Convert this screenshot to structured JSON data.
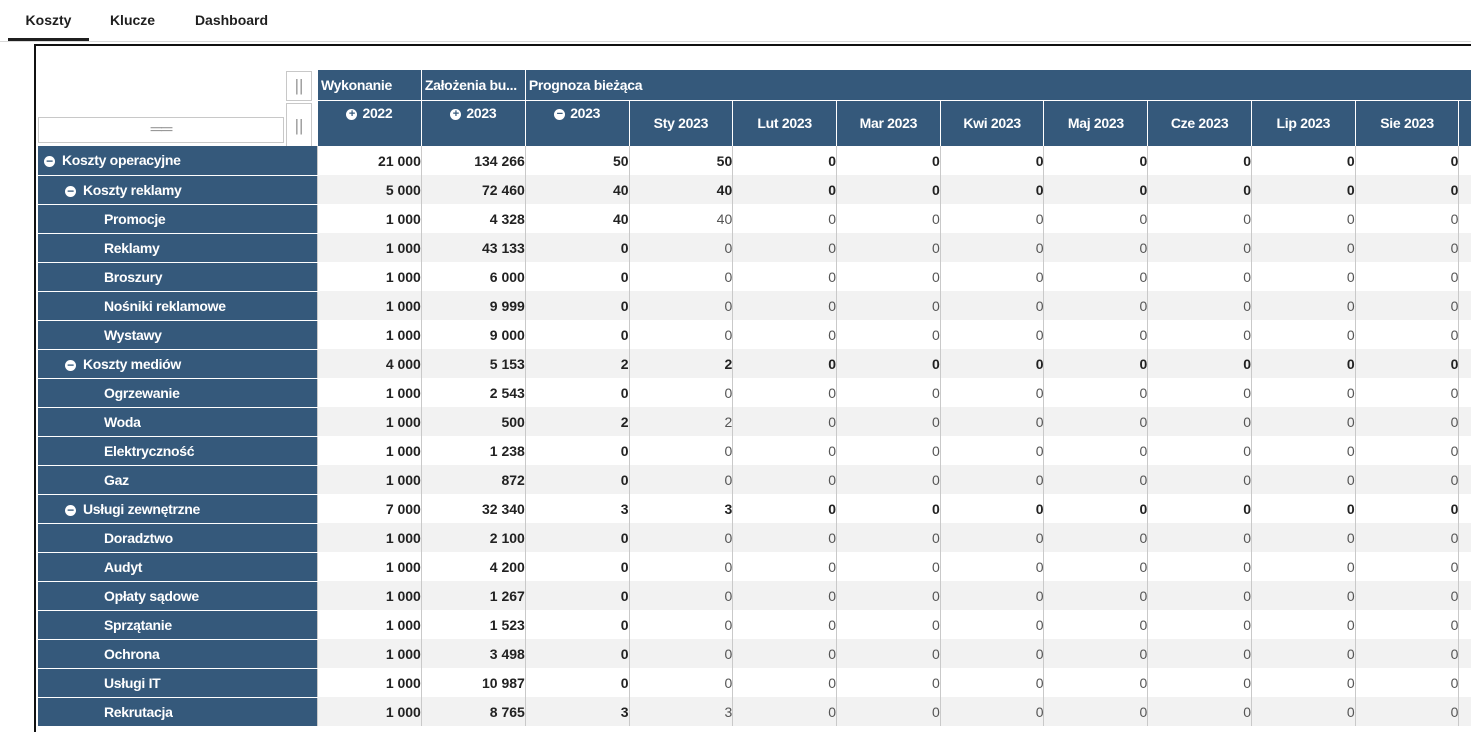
{
  "tabs": [
    {
      "label": "Koszty",
      "active": true
    },
    {
      "label": "Klucze",
      "active": false
    },
    {
      "label": "Dashboard",
      "active": false
    }
  ],
  "grip_glyph": "||",
  "column_groups": [
    "Wykonanie",
    "Założenia bu...",
    "Prognoza bieżąca"
  ],
  "year_headers": [
    {
      "label": "2022",
      "icon": "expand-icon"
    },
    {
      "label": "2023",
      "icon": "expand-icon"
    },
    {
      "label": "2023",
      "icon": "collapse-icon"
    }
  ],
  "month_headers": [
    "Sty 2023",
    "Lut 2023",
    "Mar 2023",
    "Kwi 2023",
    "Maj 2023",
    "Cze 2023",
    "Lip 2023",
    "Sie 2023"
  ],
  "rows": [
    {
      "label": "Koszty operacyjne",
      "level": 0,
      "toggle": true,
      "values": [
        "21 000",
        "134 266",
        "50",
        "50",
        "0",
        "0",
        "0",
        "0",
        "0",
        "0",
        "0"
      ]
    },
    {
      "label": "Koszty reklamy",
      "level": 1,
      "toggle": true,
      "values": [
        "5 000",
        "72 460",
        "40",
        "40",
        "0",
        "0",
        "0",
        "0",
        "0",
        "0",
        "0"
      ]
    },
    {
      "label": "Promocje",
      "level": 2,
      "toggle": false,
      "values": [
        "1 000",
        "4 328",
        "40",
        "40",
        "0",
        "0",
        "0",
        "0",
        "0",
        "0",
        "0"
      ]
    },
    {
      "label": "Reklamy",
      "level": 2,
      "toggle": false,
      "values": [
        "1 000",
        "43 133",
        "0",
        "0",
        "0",
        "0",
        "0",
        "0",
        "0",
        "0",
        "0"
      ]
    },
    {
      "label": "Broszury",
      "level": 2,
      "toggle": false,
      "values": [
        "1 000",
        "6 000",
        "0",
        "0",
        "0",
        "0",
        "0",
        "0",
        "0",
        "0",
        "0"
      ]
    },
    {
      "label": "Nośniki reklamowe",
      "level": 2,
      "toggle": false,
      "values": [
        "1 000",
        "9 999",
        "0",
        "0",
        "0",
        "0",
        "0",
        "0",
        "0",
        "0",
        "0"
      ]
    },
    {
      "label": "Wystawy",
      "level": 2,
      "toggle": false,
      "values": [
        "1 000",
        "9 000",
        "0",
        "0",
        "0",
        "0",
        "0",
        "0",
        "0",
        "0",
        "0"
      ]
    },
    {
      "label": "Koszty mediów",
      "level": 1,
      "toggle": true,
      "values": [
        "4 000",
        "5 153",
        "2",
        "2",
        "0",
        "0",
        "0",
        "0",
        "0",
        "0",
        "0"
      ]
    },
    {
      "label": "Ogrzewanie",
      "level": 2,
      "toggle": false,
      "values": [
        "1 000",
        "2 543",
        "0",
        "0",
        "0",
        "0",
        "0",
        "0",
        "0",
        "0",
        "0"
      ]
    },
    {
      "label": "Woda",
      "level": 2,
      "toggle": false,
      "values": [
        "1 000",
        "500",
        "2",
        "2",
        "0",
        "0",
        "0",
        "0",
        "0",
        "0",
        "0"
      ]
    },
    {
      "label": "Elektryczność",
      "level": 2,
      "toggle": false,
      "values": [
        "1 000",
        "1 238",
        "0",
        "0",
        "0",
        "0",
        "0",
        "0",
        "0",
        "0",
        "0"
      ]
    },
    {
      "label": "Gaz",
      "level": 2,
      "toggle": false,
      "values": [
        "1 000",
        "872",
        "0",
        "0",
        "0",
        "0",
        "0",
        "0",
        "0",
        "0",
        "0"
      ]
    },
    {
      "label": "Usługi zewnętrzne",
      "level": 1,
      "toggle": true,
      "values": [
        "7 000",
        "32 340",
        "3",
        "3",
        "0",
        "0",
        "0",
        "0",
        "0",
        "0",
        "0"
      ]
    },
    {
      "label": "Doradztwo",
      "level": 2,
      "toggle": false,
      "values": [
        "1 000",
        "2 100",
        "0",
        "0",
        "0",
        "0",
        "0",
        "0",
        "0",
        "0",
        "0"
      ]
    },
    {
      "label": "Audyt",
      "level": 2,
      "toggle": false,
      "values": [
        "1 000",
        "4 200",
        "0",
        "0",
        "0",
        "0",
        "0",
        "0",
        "0",
        "0",
        "0"
      ]
    },
    {
      "label": "Opłaty sądowe",
      "level": 2,
      "toggle": false,
      "values": [
        "1 000",
        "1 267",
        "0",
        "0",
        "0",
        "0",
        "0",
        "0",
        "0",
        "0",
        "0"
      ]
    },
    {
      "label": "Sprzątanie",
      "level": 2,
      "toggle": false,
      "values": [
        "1 000",
        "1 523",
        "0",
        "0",
        "0",
        "0",
        "0",
        "0",
        "0",
        "0",
        "0"
      ]
    },
    {
      "label": "Ochrona",
      "level": 2,
      "toggle": false,
      "values": [
        "1 000",
        "3 498",
        "0",
        "0",
        "0",
        "0",
        "0",
        "0",
        "0",
        "0",
        "0"
      ]
    },
    {
      "label": "Usługi IT",
      "level": 2,
      "toggle": false,
      "values": [
        "1 000",
        "10 987",
        "0",
        "0",
        "0",
        "0",
        "0",
        "0",
        "0",
        "0",
        "0"
      ]
    },
    {
      "label": "Rekrutacja",
      "level": 2,
      "toggle": false,
      "values": [
        "1 000",
        "8 765",
        "3",
        "3",
        "0",
        "0",
        "0",
        "0",
        "0",
        "0",
        "0"
      ]
    }
  ]
}
